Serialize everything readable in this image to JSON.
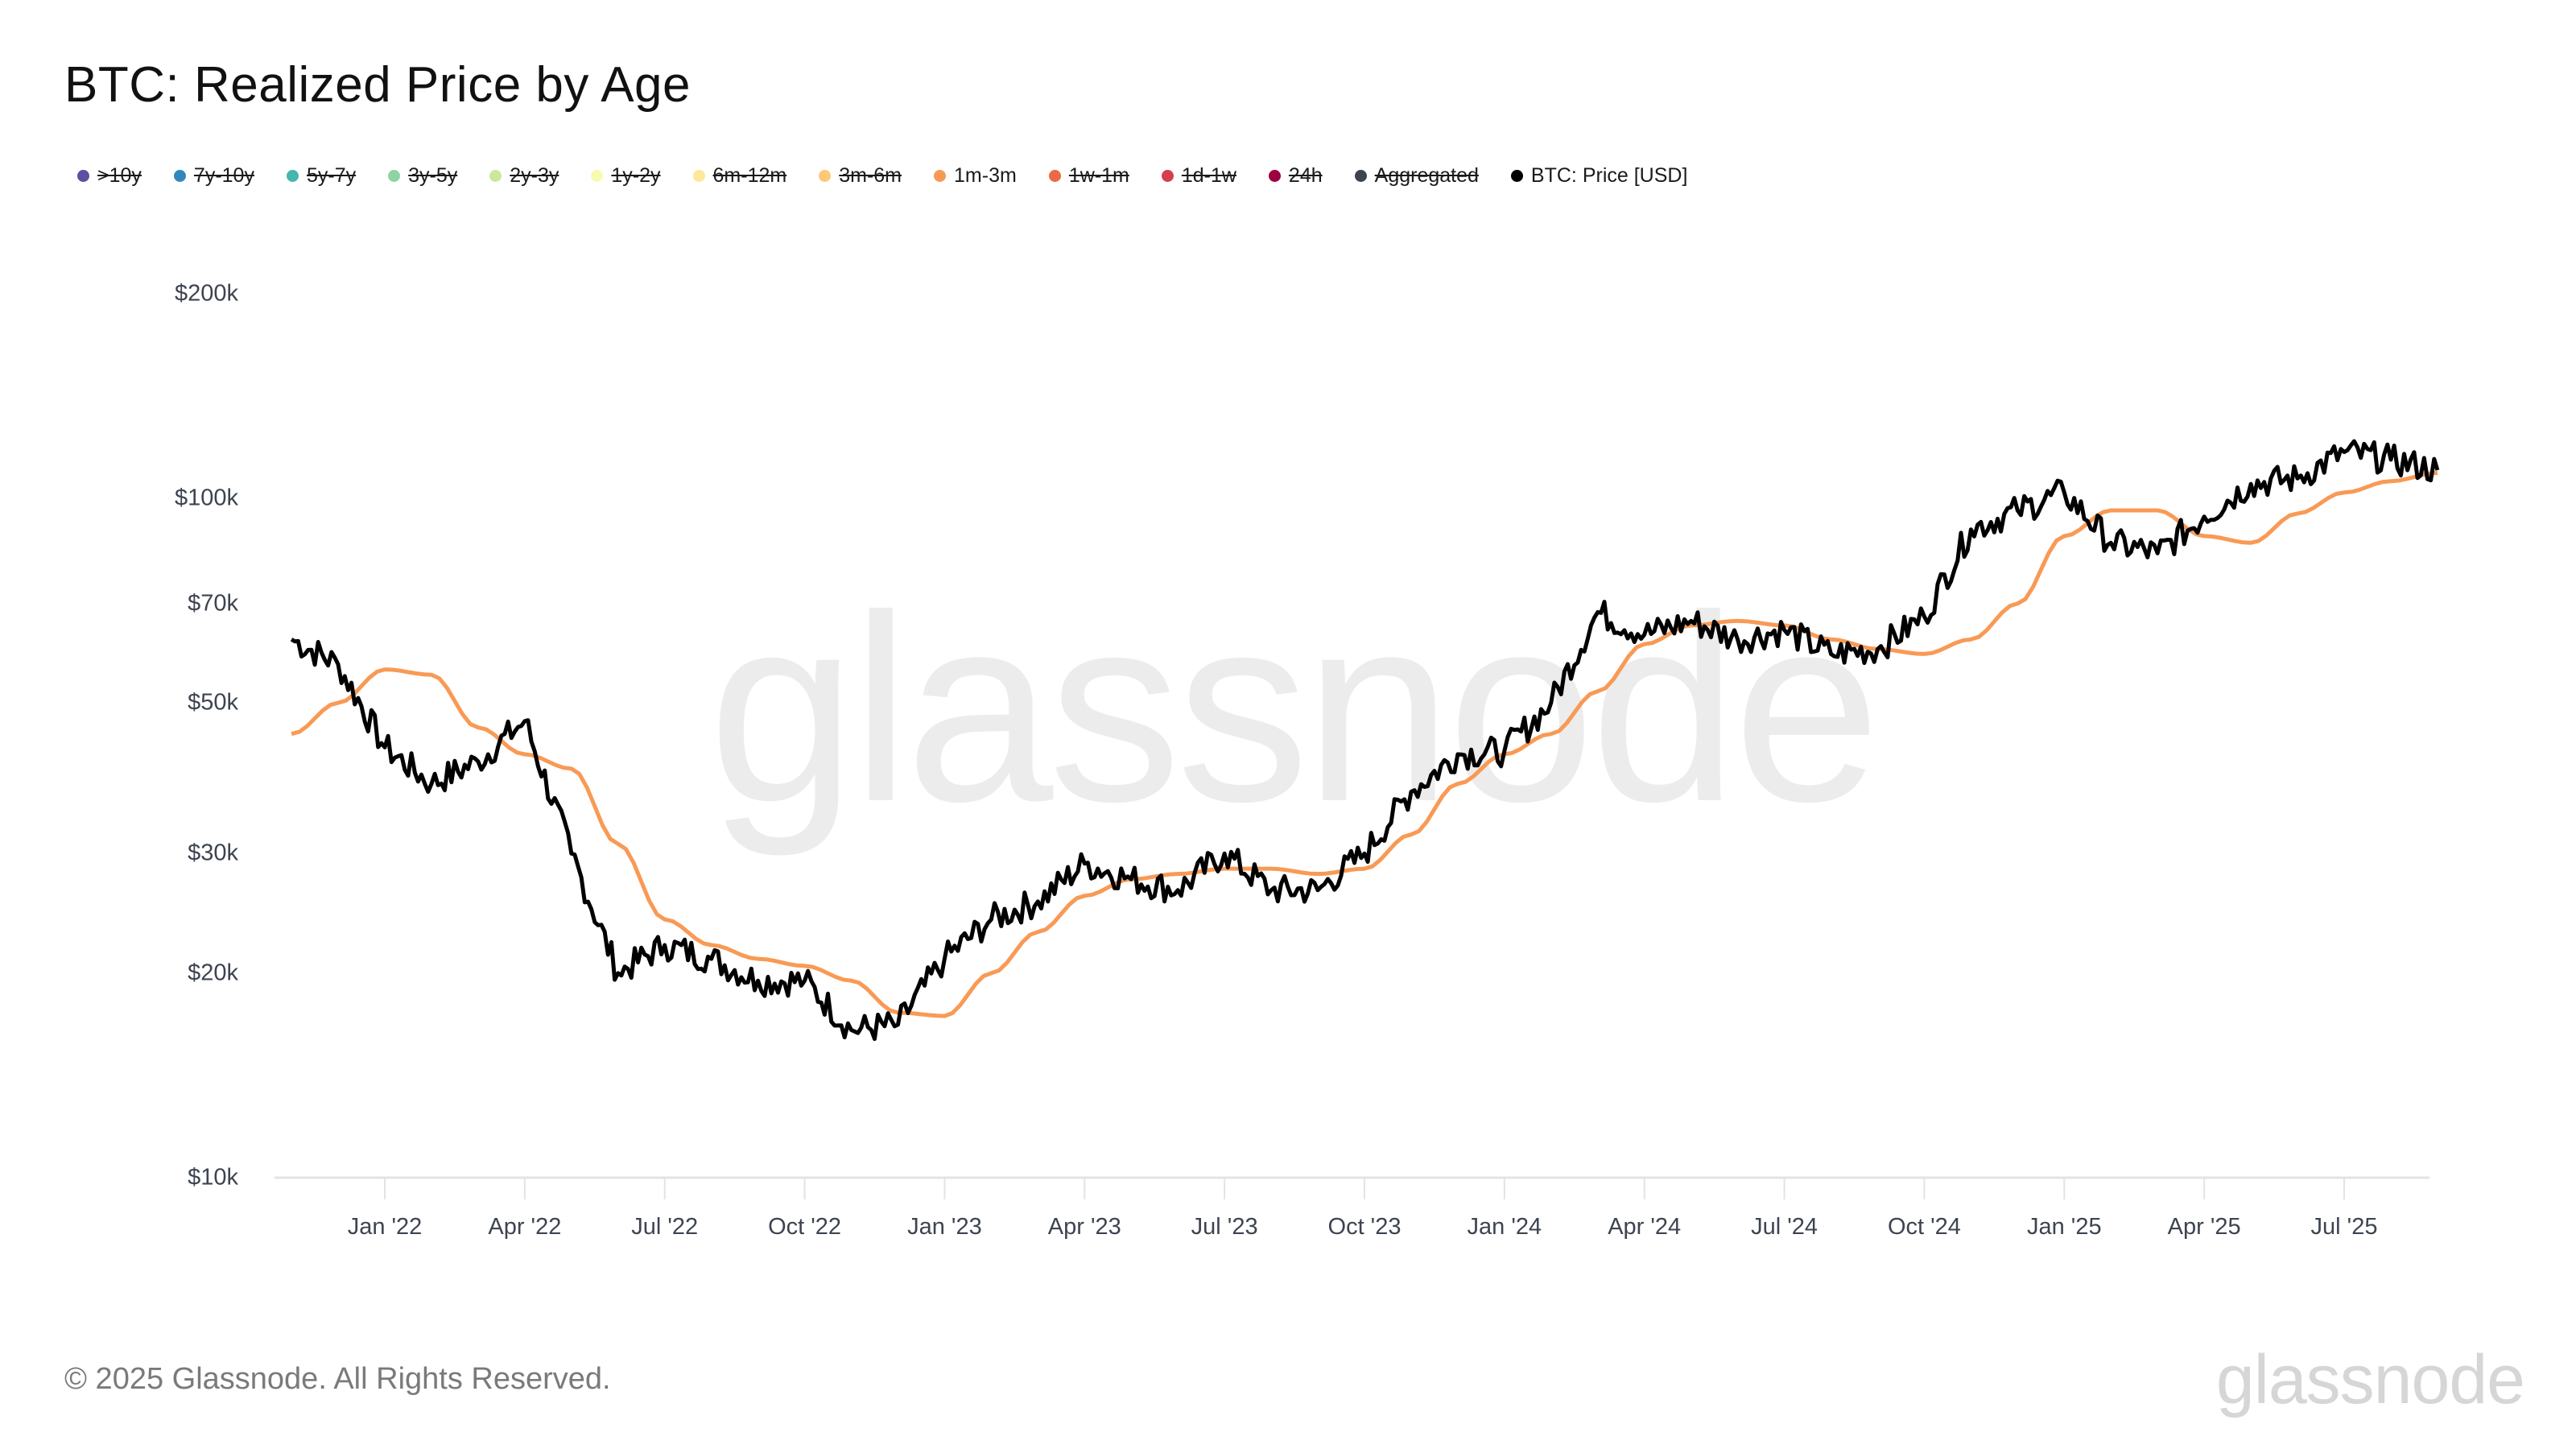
{
  "title": "BTC: Realized Price by Age",
  "legend": [
    {
      "label": ">10y",
      "color": "#5e4fa2",
      "active": false
    },
    {
      "label": "7y-10y",
      "color": "#3288bd",
      "active": false
    },
    {
      "label": "5y-7y",
      "color": "#45b6ad",
      "active": false
    },
    {
      "label": "3y-5y",
      "color": "#8fd3a4",
      "active": false
    },
    {
      "label": "2y-3y",
      "color": "#c9e99b",
      "active": false
    },
    {
      "label": "1y-2y",
      "color": "#f6fbb0",
      "active": false
    },
    {
      "label": "6m-12m",
      "color": "#fde899",
      "active": false
    },
    {
      "label": "3m-6m",
      "color": "#fdc978",
      "active": false
    },
    {
      "label": "1m-3m",
      "color": "#f89a55",
      "active": true
    },
    {
      "label": "1w-1m",
      "color": "#ec6a46",
      "active": false
    },
    {
      "label": "1d-1w",
      "color": "#d53e4f",
      "active": false
    },
    {
      "label": "24h",
      "color": "#9e0142",
      "active": false
    },
    {
      "label": "Aggregated",
      "color": "#3d4450",
      "active": false
    },
    {
      "label": "BTC: Price [USD]",
      "color": "#000000",
      "active": true
    }
  ],
  "footer": {
    "copyright": "© 2025 Glassnode. All Rights Reserved.",
    "logo": "glassnode"
  },
  "watermark": "glassnode",
  "chart_data": {
    "type": "line",
    "title": "BTC: Realized Price by Age",
    "xlabel": "",
    "ylabel": "",
    "yscale": "log",
    "ylim": [
      10000,
      200000
    ],
    "y_ticks": [
      "$10k",
      "$20k",
      "$30k",
      "$50k",
      "$70k",
      "$100k",
      "$200k"
    ],
    "y_tick_values": [
      10000,
      20000,
      30000,
      50000,
      70000,
      100000,
      200000
    ],
    "x_ticks": [
      "Jan '22",
      "Apr '22",
      "Jul '22",
      "Oct '22",
      "Jan '23",
      "Apr '23",
      "Jul '23",
      "Oct '23",
      "Jan '24",
      "Apr '24",
      "Jul '24",
      "Oct '24",
      "Jan '25",
      "Apr '25",
      "Jul '25"
    ],
    "grid": false,
    "legend_position": "top-left",
    "x": [
      "2021-11",
      "2021-12",
      "2022-01",
      "2022-02",
      "2022-03",
      "2022-04",
      "2022-05",
      "2022-06",
      "2022-07",
      "2022-08",
      "2022-09",
      "2022-10",
      "2022-11",
      "2022-12",
      "2023-01",
      "2023-02",
      "2023-03",
      "2023-04",
      "2023-05",
      "2023-06",
      "2023-07",
      "2023-08",
      "2023-09",
      "2023-10",
      "2023-11",
      "2023-12",
      "2024-01",
      "2024-02",
      "2024-03",
      "2024-04",
      "2024-05",
      "2024-06",
      "2024-07",
      "2024-08",
      "2024-09",
      "2024-10",
      "2024-11",
      "2024-12",
      "2025-01",
      "2025-02",
      "2025-03",
      "2025-04",
      "2025-05",
      "2025-06",
      "2025-07",
      "2025-08",
      "2025-09"
    ],
    "series": [
      {
        "name": "BTC: Price [USD]",
        "color": "#000000",
        "values": [
          62000,
          57000,
          43000,
          38000,
          41000,
          47000,
          30000,
          20000,
          22000,
          21000,
          19500,
          19500,
          16500,
          16800,
          21000,
          24000,
          25500,
          29000,
          27500,
          26500,
          30000,
          26500,
          26500,
          30000,
          37000,
          42000,
          42500,
          50000,
          68000,
          63000,
          66000,
          62000,
          64000,
          59000,
          60000,
          67000,
          90000,
          96000,
          102000,
          86000,
          83000,
          94000,
          105000,
          107000,
          117000,
          114000,
          110000
        ]
      },
      {
        "name": "1m-3m",
        "color": "#f89a55",
        "values": [
          45000,
          50000,
          56000,
          55000,
          46000,
          42000,
          40000,
          31000,
          24000,
          22000,
          21000,
          20500,
          19500,
          17500,
          17300,
          20000,
          23000,
          26000,
          27500,
          28000,
          28500,
          28500,
          28000,
          28500,
          32000,
          38000,
          42000,
          45000,
          52000,
          61000,
          65000,
          66000,
          65000,
          62000,
          60000,
          59000,
          62000,
          70000,
          88000,
          96000,
          96000,
          88000,
          86000,
          95000,
          102000,
          106000,
          109000
        ]
      }
    ]
  }
}
